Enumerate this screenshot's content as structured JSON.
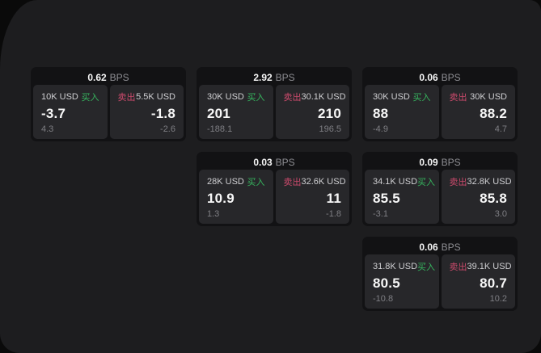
{
  "colors": {
    "outer_background": "#0a0a0a",
    "panel_background": "#1d1d1f",
    "card_background": "#121214",
    "tile_background": "#27272a",
    "buy_green": "#36b45e",
    "sell_red": "#cb4a6c",
    "text_primary": "#f5f5f5",
    "text_secondary": "#cfcfd2",
    "text_muted": "#7f7f84"
  },
  "labels": {
    "bps_unit": "BPS",
    "buy": "买入",
    "sell": "卖出"
  },
  "cards": [
    {
      "bps": "0.62",
      "buy": {
        "amount": "10K USD",
        "value": "-3.7",
        "sub": "4.3"
      },
      "sell": {
        "amount": "5.5K USD",
        "value": "-1.8",
        "sub": "-2.6"
      }
    },
    {
      "bps": "2.92",
      "buy": {
        "amount": "30K USD",
        "value": "201",
        "sub": "-188.1"
      },
      "sell": {
        "amount": "30.1K USD",
        "value": "210",
        "sub": "196.5"
      }
    },
    {
      "bps": "0.06",
      "buy": {
        "amount": "30K USD",
        "value": "88",
        "sub": "-4.9"
      },
      "sell": {
        "amount": "30K USD",
        "value": "88.2",
        "sub": "4.7"
      }
    },
    {
      "bps": "0.03",
      "buy": {
        "amount": "28K USD",
        "value": "10.9",
        "sub": "1.3"
      },
      "sell": {
        "amount": "32.6K USD",
        "value": "11",
        "sub": "-1.8"
      }
    },
    {
      "bps": "0.09",
      "buy": {
        "amount": "34.1K USD",
        "value": "85.5",
        "sub": "-3.1"
      },
      "sell": {
        "amount": "32.8K USD",
        "value": "85.8",
        "sub": "3.0"
      }
    },
    {
      "bps": "0.06",
      "buy": {
        "amount": "31.8K USD",
        "value": "80.5",
        "sub": "-10.8"
      },
      "sell": {
        "amount": "39.1K USD",
        "value": "80.7",
        "sub": "10.2"
      }
    }
  ]
}
